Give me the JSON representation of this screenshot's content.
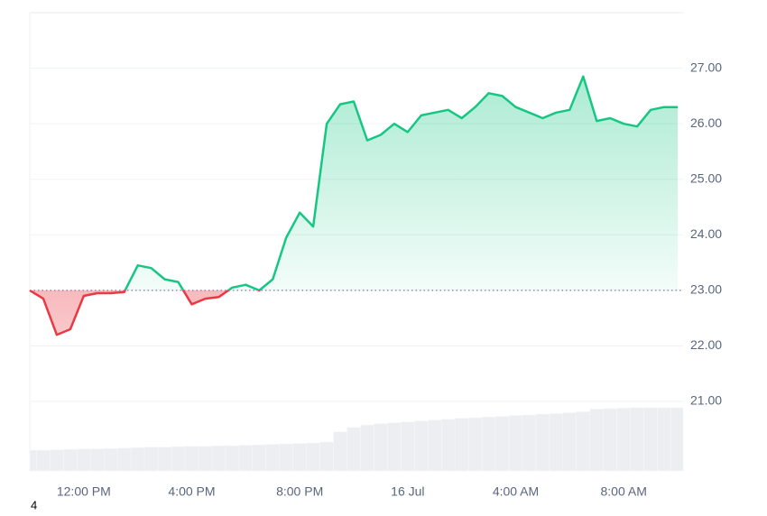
{
  "chart_data": {
    "type": "line",
    "x": [
      10,
      10.5,
      11,
      11.5,
      12,
      12.5,
      13,
      13.5,
      14,
      14.5,
      15,
      15.5,
      16,
      16.5,
      17,
      17.5,
      18,
      18.5,
      19,
      19.5,
      20,
      20.5,
      21,
      21.5,
      22,
      22.5,
      23,
      23.5,
      24,
      24.5,
      25,
      25.5,
      26,
      26.5,
      27,
      27.5,
      28,
      28.5,
      29,
      29.5,
      30,
      30.5,
      31,
      31.5,
      32,
      32.5,
      33,
      33.5,
      34
    ],
    "series": [
      {
        "values": [
          23.0,
          22.85,
          22.2,
          22.3,
          22.9,
          22.95,
          22.95,
          22.97,
          23.45,
          23.4,
          23.2,
          23.15,
          22.75,
          22.85,
          22.88,
          23.05,
          23.1,
          23.0,
          23.2,
          23.95,
          24.4,
          24.15,
          26.0,
          26.35,
          26.4,
          25.7,
          25.8,
          26.0,
          25.85,
          26.15,
          26.2,
          26.25,
          26.1,
          26.3,
          26.55,
          26.5,
          26.3,
          26.2,
          26.1,
          26.2,
          26.25,
          26.85,
          26.05,
          26.1,
          26.0,
          25.95,
          26.25,
          26.3,
          26.3
        ]
      },
      {
        "axis": "y2",
        "color": "#eceef2",
        "values": [
          4.5,
          4.5,
          4.6,
          4.7,
          4.8,
          4.8,
          4.9,
          5.0,
          5.1,
          5.2,
          5.2,
          5.3,
          5.4,
          5.4,
          5.5,
          5.5,
          5.6,
          5.7,
          5.8,
          5.9,
          6.0,
          6.1,
          6.3,
          8.5,
          9.5,
          10.0,
          10.3,
          10.5,
          10.7,
          10.9,
          11.1,
          11.3,
          11.5,
          11.6,
          11.8,
          11.9,
          12.1,
          12.2,
          12.4,
          12.5,
          12.7,
          12.9,
          13.5,
          13.6,
          13.7,
          13.8,
          13.8,
          13.8,
          13.8
        ]
      }
    ],
    "baseline": 23,
    "up_color": "#16c784",
    "down_color": "#ea3943",
    "xlim": [
      10,
      34.2
    ],
    "xticks": [
      {
        "value": 12,
        "label": "12:00 PM"
      },
      {
        "value": 16,
        "label": "4:00 PM"
      },
      {
        "value": 20,
        "label": "8:00 PM"
      },
      {
        "value": 24,
        "label": "16 Jul"
      },
      {
        "value": 28,
        "label": "4:00 AM"
      },
      {
        "value": 32,
        "label": "8:00 AM"
      }
    ],
    "ylim": [
      19.75,
      28
    ],
    "yticks": [
      {
        "value": 21,
        "label": "21.00"
      },
      {
        "value": 22,
        "label": "22.00"
      },
      {
        "value": 23,
        "label": "23.00"
      },
      {
        "value": 24,
        "label": "24.00"
      },
      {
        "value": 25,
        "label": "25.00"
      },
      {
        "value": 26,
        "label": "26.00"
      },
      {
        "value": 27,
        "label": "27.00"
      }
    ],
    "y2lim": [
      0,
      100
    ],
    "grid": true,
    "corner_text": "4"
  }
}
